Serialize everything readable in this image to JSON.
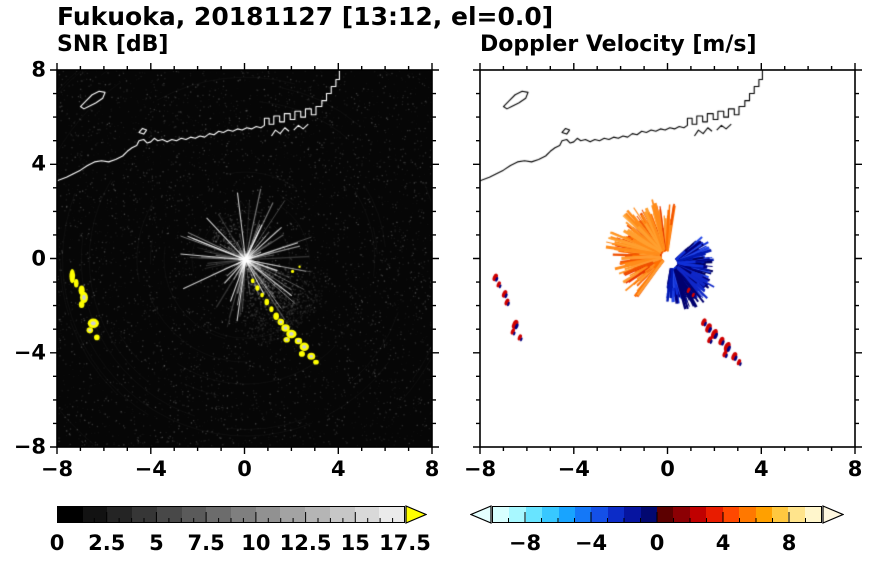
{
  "title": "Fukuoka, 20181127 [13:12, el=0.0]",
  "axes": {
    "min": -8,
    "max": 8,
    "minor_step": 1,
    "tick_labels": [
      {
        "v": -8,
        "t": "−8"
      },
      {
        "v": -4,
        "t": "−4"
      },
      {
        "v": 0,
        "t": "0"
      },
      {
        "v": 4,
        "t": "4"
      },
      {
        "v": 8,
        "t": "8"
      }
    ]
  },
  "colorbars": [
    {
      "name": "SNR [dB]",
      "min": 0,
      "max": 17.5,
      "cells": 14,
      "tick_divisions": 28,
      "type": "gray",
      "over_color": "#ffff00",
      "labels": [
        {
          "v": 0,
          "t": "0"
        },
        {
          "v": 2.5,
          "t": "2.5"
        },
        {
          "v": 5,
          "t": "5"
        },
        {
          "v": 7.5,
          "t": "7.5"
        },
        {
          "v": 10,
          "t": "10"
        },
        {
          "v": 12.5,
          "t": "12.5"
        },
        {
          "v": 15,
          "t": "15"
        },
        {
          "v": 17.5,
          "t": "17.5"
        }
      ]
    },
    {
      "name": "Doppler Velocity [m/s]",
      "min": -10,
      "max": 10,
      "cells": 20,
      "tick_divisions": 20,
      "type": "palette",
      "palette": [
        "#d8ffff",
        "#a8f8ff",
        "#68e4ff",
        "#38c8ff",
        "#18a4ff",
        "#1478f8",
        "#1450e8",
        "#0c2cc8",
        "#0614a0",
        "#020870",
        "#5c0000",
        "#8c0004",
        "#c00000",
        "#e81c00",
        "#ff4800",
        "#ff7800",
        "#ffa000",
        "#ffc840",
        "#ffe48c",
        "#fff6cc"
      ],
      "under_color": "#e4ffff",
      "over_color": "#fff8e0",
      "labels": [
        {
          "v": -8,
          "t": "−8"
        },
        {
          "v": -4,
          "t": "−4"
        },
        {
          "v": 0,
          "t": "0"
        },
        {
          "v": 4,
          "t": "4"
        },
        {
          "v": 8,
          "t": "8"
        }
      ]
    }
  ],
  "chart_data": {
    "type": "heatmap",
    "title": "Fukuoka, 20181127 [13:12, el=0.0]",
    "site": "Fukuoka",
    "date": "20181127",
    "time": "13:12",
    "elevation_deg": 0.0,
    "x_range": [
      -8,
      8
    ],
    "y_range": [
      -8,
      8
    ],
    "x_ticks": [
      -8,
      -4,
      0,
      4,
      8
    ],
    "y_ticks": [
      -8,
      -4,
      0,
      4,
      8
    ],
    "panels": [
      {
        "title": "SNR [dB]",
        "colorbar_range": [
          0,
          17.5
        ],
        "over_range_color": "#ffff00",
        "background": "black (low-SNR receiver noise speckle)",
        "notes": "Radial bright beam pattern centered on radar at (0,0); diffuse gray haze toward SE; yellow blobs are echoes above 17.5 dB"
      },
      {
        "title": "Doppler Velocity [m/s]",
        "colorbar_range": [
          -10,
          10
        ],
        "background": "white (no data)",
        "notes": "Orange/red positive velocities (+2 to +9 m/s) NW of radar, navy/blue negative velocities (−2 to −9 m/s) E-SE of radar; scattered red/navy specks along SE streak and near west edge"
      }
    ],
    "map": {
      "coastline": [
        [
          -8,
          3.3
        ],
        [
          -7.6,
          3.45
        ],
        [
          -7.3,
          3.6
        ],
        [
          -7,
          3.75
        ],
        [
          -6.7,
          3.95
        ],
        [
          -6.4,
          4.1
        ],
        [
          -6.1,
          4.15
        ],
        [
          -5.8,
          4.1
        ],
        [
          -5.5,
          4.2
        ],
        [
          -5.2,
          4.35
        ],
        [
          -5,
          4.55
        ],
        [
          -4.8,
          4.7
        ],
        [
          -4.6,
          4.8
        ],
        [
          -4.5,
          5
        ],
        [
          -4.3,
          5.05
        ],
        [
          -4.15,
          4.9
        ],
        [
          -4,
          4.95
        ],
        [
          -3.85,
          5.1
        ],
        [
          -3.7,
          5
        ],
        [
          -3.5,
          5.05
        ],
        [
          -3.3,
          4.95
        ],
        [
          -3.1,
          5.05
        ],
        [
          -2.9,
          5
        ],
        [
          -2.7,
          5.1
        ],
        [
          -2.5,
          5.05
        ],
        [
          -2.3,
          5.15
        ],
        [
          -2.1,
          5.1
        ],
        [
          -1.9,
          5.2
        ],
        [
          -1.7,
          5.15
        ],
        [
          -1.5,
          5.3
        ],
        [
          -1.3,
          5.25
        ],
        [
          -1.1,
          5.4
        ],
        [
          -0.9,
          5.35
        ],
        [
          -0.7,
          5.45
        ],
        [
          -0.5,
          5.4
        ],
        [
          -0.3,
          5.5
        ],
        [
          -0.1,
          5.45
        ],
        [
          0.1,
          5.55
        ],
        [
          0.3,
          5.5
        ],
        [
          0.5,
          5.6
        ],
        [
          0.7,
          5.55
        ],
        [
          0.85,
          5.65
        ],
        [
          0.85,
          5.95
        ],
        [
          1.05,
          5.95
        ],
        [
          1.05,
          5.7
        ],
        [
          1.25,
          5.7
        ],
        [
          1.25,
          6.05
        ],
        [
          1.5,
          6.05
        ],
        [
          1.5,
          5.8
        ],
        [
          1.7,
          5.8
        ],
        [
          1.7,
          6.15
        ],
        [
          1.95,
          6.15
        ],
        [
          1.95,
          5.9
        ],
        [
          2.15,
          5.9
        ],
        [
          2.15,
          6.25
        ],
        [
          2.4,
          6.25
        ],
        [
          2.4,
          6
        ],
        [
          2.6,
          6
        ],
        [
          2.6,
          6.35
        ],
        [
          2.85,
          6.35
        ],
        [
          2.85,
          6.1
        ],
        [
          3.05,
          6.1
        ],
        [
          3.05,
          6.45
        ],
        [
          3.3,
          6.45
        ],
        [
          3.3,
          6.7
        ],
        [
          3.5,
          6.7
        ],
        [
          3.5,
          7
        ],
        [
          3.7,
          7
        ],
        [
          3.7,
          7.3
        ],
        [
          3.9,
          7.3
        ],
        [
          3.9,
          7.6
        ],
        [
          4.05,
          7.6
        ],
        [
          4.05,
          8
        ]
      ],
      "islands": [
        [
          [
            -7,
            6.45
          ],
          [
            -6.75,
            6.7
          ],
          [
            -6.5,
            6.95
          ],
          [
            -6.2,
            7.1
          ],
          [
            -5.95,
            7.05
          ],
          [
            -6.05,
            6.8
          ],
          [
            -6.35,
            6.6
          ],
          [
            -6.65,
            6.45
          ],
          [
            -6.85,
            6.35
          ]
        ],
        [
          [
            -4.5,
            5.35
          ],
          [
            -4.35,
            5.52
          ],
          [
            -4.18,
            5.45
          ],
          [
            -4.3,
            5.28
          ]
        ]
      ],
      "piers": [
        [
          [
            1.15,
            5.2
          ],
          [
            1.32,
            5.45
          ],
          [
            1.52,
            5.3
          ],
          [
            1.72,
            5.55
          ],
          [
            1.9,
            5.4
          ]
        ],
        [
          [
            2.1,
            5.45
          ],
          [
            2.3,
            5.65
          ],
          [
            2.5,
            5.5
          ],
          [
            2.72,
            5.7
          ]
        ]
      ]
    },
    "snr_texture": {
      "beam_center": [
        0.05,
        -0.05
      ],
      "haze_azimuth_deg": -52,
      "haze_extent": 3.6
    },
    "snr_echoes": [
      [
        -7.35,
        -0.75,
        0.12,
        0.3
      ],
      [
        -7.18,
        -1.05,
        0.1,
        0.18
      ],
      [
        -6.95,
        -1.35,
        0.13,
        0.2
      ],
      [
        -6.85,
        -1.65,
        0.17,
        0.24
      ],
      [
        -6.95,
        -1.95,
        0.12,
        0.15
      ],
      [
        -6.45,
        -2.75,
        0.24,
        0.2
      ],
      [
        -6.6,
        -3.05,
        0.14,
        0.13
      ],
      [
        -6.3,
        -3.35,
        0.12,
        0.12
      ],
      [
        0.35,
        -0.95,
        0.08,
        0.1
      ],
      [
        0.55,
        -1.25,
        0.09,
        0.12
      ],
      [
        0.75,
        -1.55,
        0.08,
        0.1
      ],
      [
        0.95,
        -1.85,
        0.1,
        0.14
      ],
      [
        1.15,
        -2.15,
        0.09,
        0.12
      ],
      [
        1.35,
        -2.45,
        0.12,
        0.16
      ],
      [
        1.55,
        -2.7,
        0.14,
        0.14
      ],
      [
        1.75,
        -2.95,
        0.18,
        0.16
      ],
      [
        2,
        -3.2,
        0.22,
        0.18
      ],
      [
        1.8,
        -3.45,
        0.14,
        0.12
      ],
      [
        2.3,
        -3.5,
        0.16,
        0.14
      ],
      [
        2.55,
        -3.75,
        0.2,
        0.18
      ],
      [
        2.45,
        -4.05,
        0.13,
        0.12
      ],
      [
        2.85,
        -4.15,
        0.17,
        0.15
      ],
      [
        3.05,
        -4.4,
        0.12,
        0.1
      ],
      [
        2.05,
        -0.55,
        0.07,
        0.07
      ],
      [
        2.35,
        -0.35,
        0.05,
        0.05
      ]
    ],
    "velocity_fans": [
      {
        "cx": -0.05,
        "cy": 0.1,
        "a0": 80,
        "a1": 235,
        "rmin": 0.3,
        "rmax": 2.3,
        "count": 230,
        "colors": [
          "#ff7000",
          "#ff8c1a",
          "#f05000",
          "#e83800",
          "#ff9b30"
        ]
      },
      {
        "cx": -0.1,
        "cy": 0.15,
        "a0": 100,
        "a1": 175,
        "rmin": 1.2,
        "rmax": 2.6,
        "count": 45,
        "colors": [
          "#ff8c1a",
          "#ffa030"
        ]
      },
      {
        "cx": 0.2,
        "cy": -0.2,
        "a0": -100,
        "a1": 45,
        "rmin": 0.25,
        "rmax": 1.8,
        "count": 280,
        "colors": [
          "#000080",
          "#0018b0",
          "#1030d8",
          "#000060",
          "#2448e8"
        ]
      },
      {
        "cx": 0.25,
        "cy": -0.25,
        "a0": -75,
        "a1": -20,
        "rmin": 0.8,
        "rmax": 2.1,
        "count": 50,
        "colors": [
          "#000070",
          "#1028c8"
        ]
      }
    ],
    "velocity_specks": [
      [
        -7.35,
        -0.8,
        0.1
      ],
      [
        -7.2,
        -1.1,
        0.08
      ],
      [
        -6.95,
        -1.5,
        0.1
      ],
      [
        -6.85,
        -1.85,
        0.09
      ],
      [
        -6.5,
        -2.8,
        0.12
      ],
      [
        -6.6,
        -3.1,
        0.08
      ],
      [
        -6.3,
        -3.35,
        0.08
      ],
      [
        1.55,
        -2.7,
        0.1
      ],
      [
        1.75,
        -2.95,
        0.12
      ],
      [
        2,
        -3.2,
        0.13
      ],
      [
        1.8,
        -3.45,
        0.09
      ],
      [
        2.3,
        -3.5,
        0.11
      ],
      [
        2.55,
        -3.75,
        0.13
      ],
      [
        2.45,
        -4.05,
        0.09
      ],
      [
        2.85,
        -4.15,
        0.11
      ],
      [
        3.05,
        -4.4,
        0.08
      ],
      [
        0.9,
        -1.35,
        0.07
      ],
      [
        1.1,
        -1.55,
        0.06
      ]
    ]
  }
}
